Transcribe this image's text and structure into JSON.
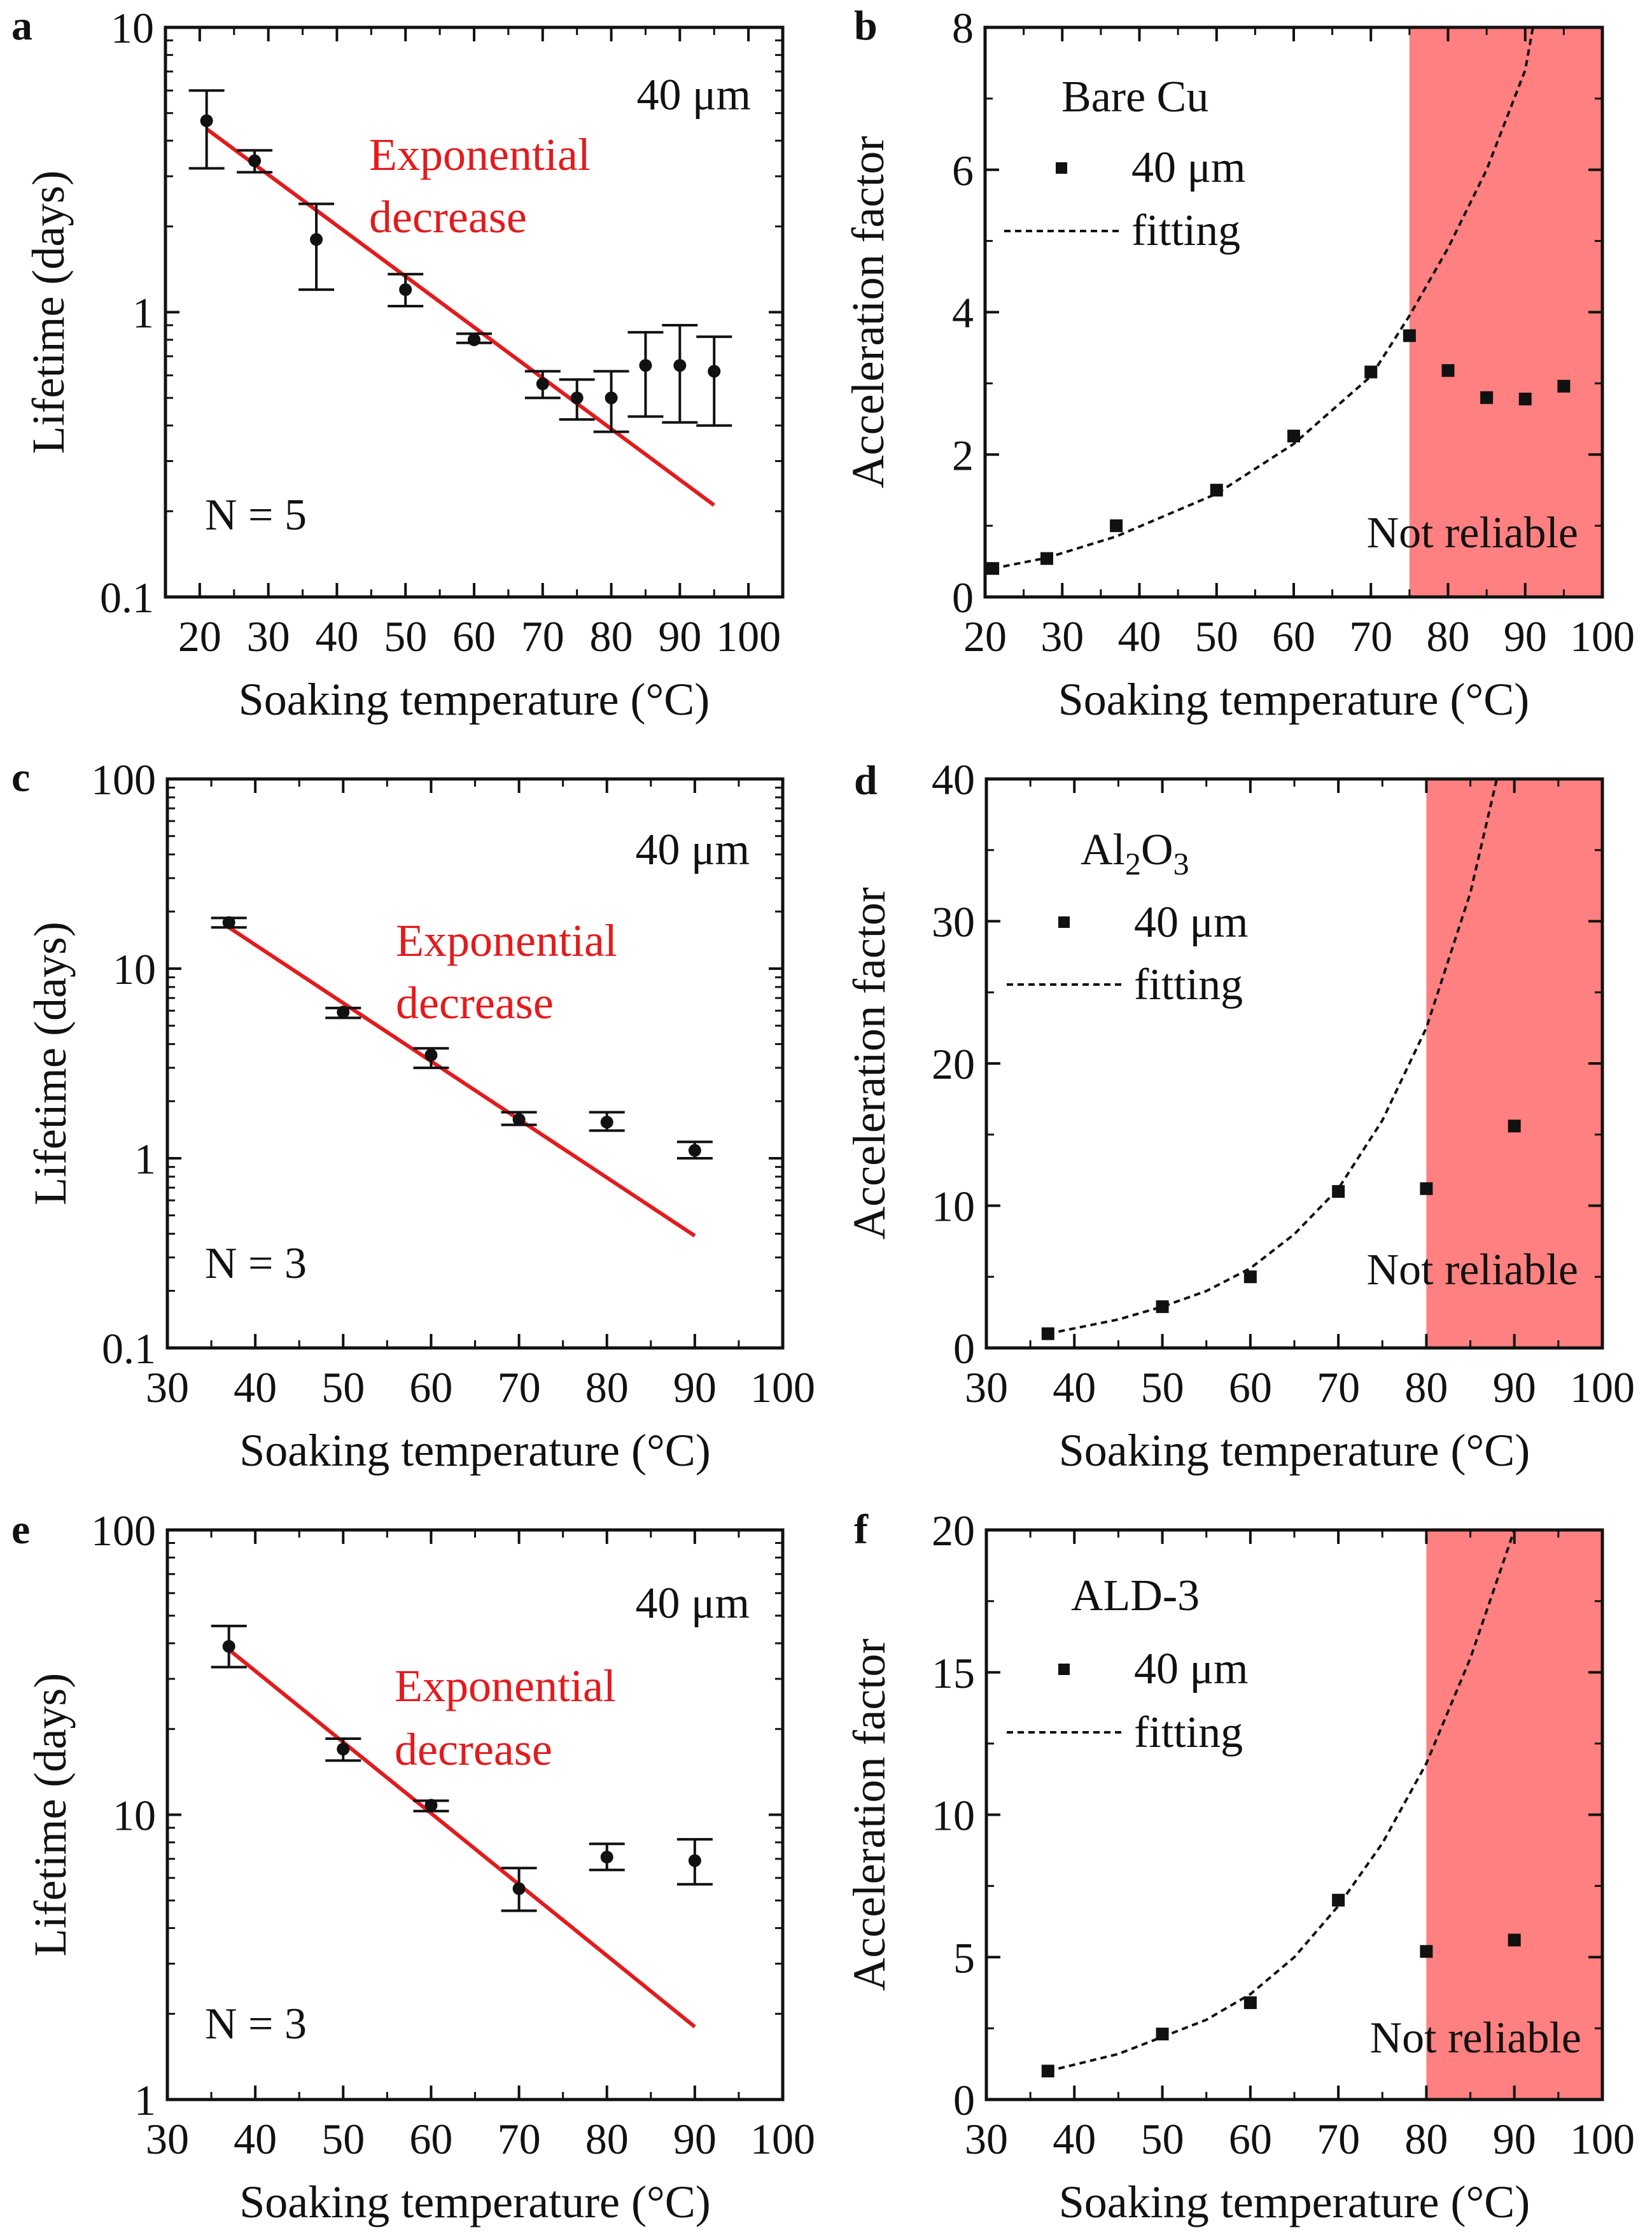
{
  "chart_data": [
    {
      "panel": "a",
      "type": "scatter",
      "yscale": "log",
      "xlim": [
        15,
        105
      ],
      "ylim": [
        0.1,
        10
      ],
      "xticks": [
        20,
        30,
        40,
        50,
        60,
        70,
        80,
        90,
        100
      ],
      "yticks": [
        0.1,
        1,
        10
      ],
      "ytick_labels": [
        "0.1",
        "1",
        "10"
      ],
      "xlabel": "Soaking temperature (°C)",
      "ylabel": "Lifetime (days)",
      "annotations": {
        "size_label": "40 μm",
        "fit_label_line1": "Exponential",
        "fit_label_line2": "decrease",
        "n_label": "N = 5"
      },
      "series": [
        {
          "name": "Lifetime",
          "x": [
            21,
            28,
            37,
            50,
            60,
            70,
            75,
            80,
            85,
            90,
            95
          ],
          "y": [
            4.7,
            3.4,
            1.8,
            1.2,
            0.8,
            0.56,
            0.5,
            0.5,
            0.65,
            0.65,
            0.62
          ],
          "y_low": [
            3.2,
            3.1,
            1.2,
            1.05,
            0.78,
            0.5,
            0.42,
            0.38,
            0.43,
            0.41,
            0.4
          ],
          "y_high": [
            6.0,
            3.7,
            2.4,
            1.36,
            0.84,
            0.62,
            0.58,
            0.62,
            0.85,
            0.9,
            0.82
          ]
        }
      ],
      "fit_line": {
        "x": [
          21,
          95
        ],
        "y": [
          4.4,
          0.21
        ],
        "color": "#e41a1c"
      }
    },
    {
      "panel": "b",
      "type": "scatter",
      "xlim": [
        20,
        100
      ],
      "ylim": [
        0,
        8
      ],
      "xticks": [
        20,
        30,
        40,
        50,
        60,
        70,
        80,
        90,
        100
      ],
      "yticks": [
        0,
        2,
        4,
        6,
        8
      ],
      "xlabel": "Soaking temperature (°C)",
      "ylabel": "Acceleration factor",
      "legend_title": "Bare Cu",
      "legend": [
        "40 μm",
        "fitting"
      ],
      "shaded_label": "Not reliable",
      "shaded_range": [
        75,
        100
      ],
      "shade_color": "#ff8080",
      "series": [
        {
          "name": "40 μm",
          "x": [
            21,
            28,
            37,
            50,
            60,
            70,
            75,
            80,
            85,
            90,
            95
          ],
          "y": [
            0.4,
            0.54,
            1.0,
            1.5,
            2.26,
            3.16,
            3.67,
            3.18,
            2.8,
            2.78,
            2.96
          ]
        }
      ],
      "fit": {
        "x": [
          21,
          28,
          37,
          50,
          60,
          70,
          75,
          80,
          85,
          90,
          91
        ],
        "y": [
          0.4,
          0.55,
          0.85,
          1.45,
          2.15,
          3.1,
          3.95,
          4.9,
          6.0,
          7.4,
          8.0
        ]
      }
    },
    {
      "panel": "c",
      "type": "scatter",
      "yscale": "log",
      "xlim": [
        30,
        100
      ],
      "ylim": [
        0.1,
        100
      ],
      "xticks": [
        30,
        40,
        50,
        60,
        70,
        80,
        90,
        100
      ],
      "yticks": [
        0.1,
        1,
        10,
        100
      ],
      "ytick_labels": [
        "0.1",
        "1",
        "10",
        "100"
      ],
      "xlabel": "Soaking temperature (°C)",
      "ylabel": "Lifetime (days)",
      "annotations": {
        "size_label": "40 μm",
        "fit_label_line1": "Exponential",
        "fit_label_line2": "decrease",
        "n_label": "N = 3"
      },
      "series": [
        {
          "name": "Lifetime",
          "x": [
            37,
            50,
            60,
            70,
            80,
            90
          ],
          "y": [
            17.5,
            5.9,
            3.5,
            1.6,
            1.55,
            1.1
          ],
          "y_low": [
            16.5,
            5.5,
            3.0,
            1.5,
            1.4,
            1.0
          ],
          "y_high": [
            18.5,
            6.2,
            3.8,
            1.75,
            1.75,
            1.22
          ]
        }
      ],
      "fit_line": {
        "x": [
          37,
          90
        ],
        "y": [
          16.5,
          0.39
        ],
        "color": "#e41a1c"
      }
    },
    {
      "panel": "d",
      "type": "scatter",
      "xlim": [
        30,
        100
      ],
      "ylim": [
        0,
        40
      ],
      "xticks": [
        30,
        40,
        50,
        60,
        70,
        80,
        90,
        100
      ],
      "yticks": [
        0,
        10,
        20,
        30,
        40
      ],
      "xlabel": "Soaking temperature (°C)",
      "ylabel": "Acceleration factor",
      "legend_title": "Al2O3",
      "legend": [
        "40 μm",
        "fitting"
      ],
      "shaded_label": "Not reliable",
      "shaded_range": [
        80,
        100
      ],
      "shade_color": "#ff8080",
      "series": [
        {
          "name": "40 μm",
          "x": [
            37,
            50,
            60,
            70,
            80,
            90
          ],
          "y": [
            1.0,
            2.9,
            5.0,
            11.0,
            11.2,
            15.6
          ]
        }
      ],
      "fit": {
        "x": [
          37,
          45,
          50,
          55,
          60,
          65,
          70,
          75,
          80,
          85,
          88
        ],
        "y": [
          1.0,
          2.0,
          2.9,
          4.0,
          5.6,
          8.0,
          11.2,
          16.0,
          22.5,
          32.0,
          40.0
        ]
      }
    },
    {
      "panel": "e",
      "type": "scatter",
      "yscale": "log",
      "xlim": [
        30,
        100
      ],
      "ylim": [
        1,
        100
      ],
      "xticks": [
        30,
        40,
        50,
        60,
        70,
        80,
        90,
        100
      ],
      "yticks": [
        1,
        10,
        100
      ],
      "ytick_labels": [
        "1",
        "10",
        "100"
      ],
      "xlabel": "Soaking temperature (°C)",
      "ylabel": "Lifetime (days)",
      "annotations": {
        "size_label": "40 μm",
        "fit_label_line1": "Exponential",
        "fit_label_line2": "decrease",
        "n_label": "N = 3"
      },
      "series": [
        {
          "name": "Lifetime",
          "x": [
            37,
            50,
            60,
            70,
            80,
            90
          ],
          "y": [
            39,
            17,
            10.8,
            5.5,
            7.1,
            6.9
          ],
          "y_low": [
            33,
            15.5,
            10.3,
            4.6,
            6.4,
            5.7
          ],
          "y_high": [
            46,
            18.5,
            11.2,
            6.5,
            7.9,
            8.2
          ]
        }
      ],
      "fit_line": {
        "x": [
          37,
          90
        ],
        "y": [
          38,
          1.8
        ],
        "color": "#e41a1c"
      }
    },
    {
      "panel": "f",
      "type": "scatter",
      "xlim": [
        30,
        100
      ],
      "ylim": [
        0,
        20
      ],
      "xticks": [
        30,
        40,
        50,
        60,
        70,
        80,
        90,
        100
      ],
      "yticks": [
        0,
        5,
        10,
        15,
        20
      ],
      "xlabel": "Soaking temperature (°C)",
      "ylabel": "Acceleration factor",
      "legend_title": "ALD-3",
      "legend": [
        "40 μm",
        "fitting"
      ],
      "shaded_label": "Not reliable",
      "shaded_range": [
        80,
        100
      ],
      "shade_color": "#ff8080",
      "series": [
        {
          "name": "40 μm",
          "x": [
            37,
            50,
            60,
            70,
            80,
            90
          ],
          "y": [
            1.0,
            2.3,
            3.4,
            7.0,
            5.2,
            5.6
          ]
        }
      ],
      "fit": {
        "x": [
          37,
          45,
          50,
          55,
          60,
          65,
          70,
          75,
          80,
          85,
          90
        ],
        "y": [
          1.0,
          1.6,
          2.2,
          2.8,
          3.7,
          5.0,
          6.8,
          9.0,
          11.8,
          15.5,
          20.0
        ]
      }
    }
  ]
}
